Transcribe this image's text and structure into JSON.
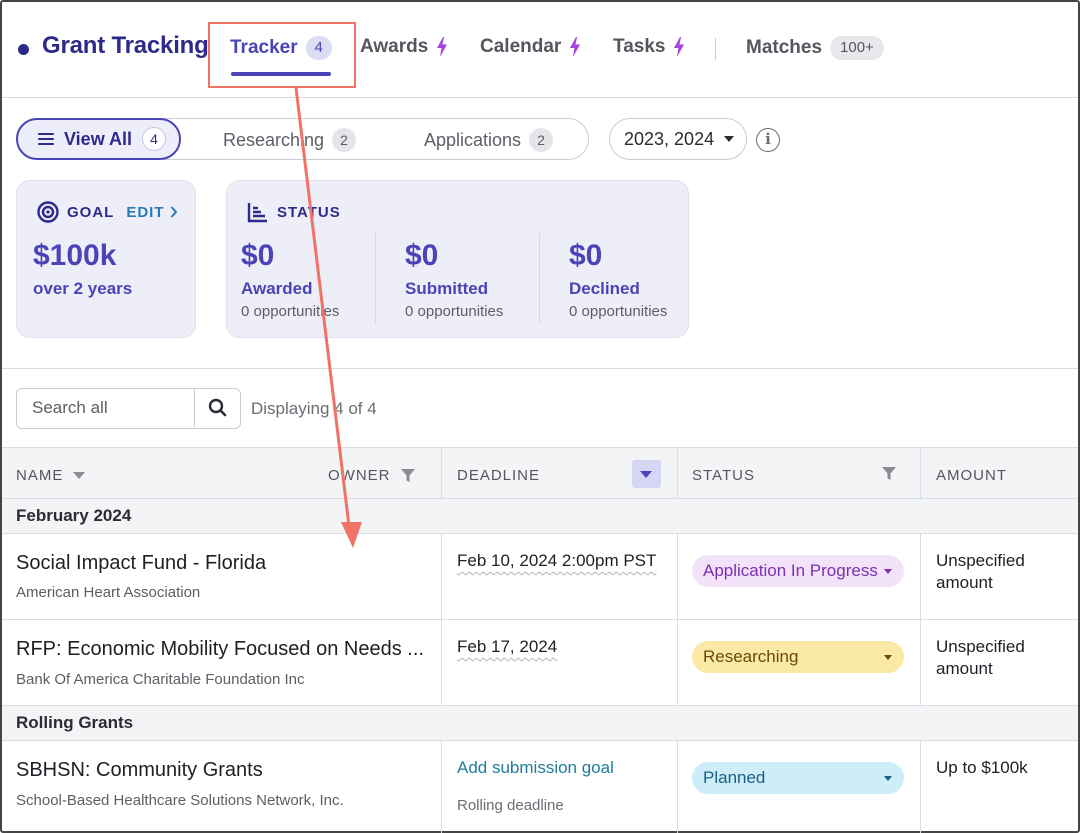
{
  "app": {
    "title": "Grant Tracking"
  },
  "nav": {
    "items": [
      {
        "label": "Tracker",
        "count": "4"
      },
      {
        "label": "Awards"
      },
      {
        "label": "Calendar"
      },
      {
        "label": "Tasks"
      },
      {
        "label": "Matches",
        "count": "100+"
      }
    ],
    "active": "Tracker",
    "accent": "#4a44b8"
  },
  "filters": {
    "view_all": {
      "label": "View All",
      "count": "4"
    },
    "researching": {
      "label": "Researching",
      "count": "2"
    },
    "applications": {
      "label": "Applications",
      "count": "2"
    },
    "year_select": "2023, 2024",
    "info_icon": "i"
  },
  "goal_card": {
    "heading": "GOAL",
    "edit_label": "EDIT",
    "amount": "$100k",
    "period": "over 2 years"
  },
  "status_card": {
    "heading": "STATUS",
    "items": [
      {
        "amount": "$0",
        "label": "Awarded",
        "note": "0 opportunities"
      },
      {
        "amount": "$0",
        "label": "Submitted",
        "note": "0 opportunities"
      },
      {
        "amount": "$0",
        "label": "Declined",
        "note": "0 opportunities"
      }
    ]
  },
  "search": {
    "placeholder": "Search all",
    "displaying": "Displaying 4 of 4"
  },
  "table": {
    "headers": {
      "name": "NAME",
      "owner": "OWNER",
      "deadline": "DEADLINE",
      "status": "STATUS",
      "amount": "AMOUNT"
    },
    "groups": [
      {
        "label": "February 2024",
        "rows": [
          {
            "name": "Social Impact Fund - Florida",
            "org": "American Heart Association",
            "deadline": "Feb 10, 2024 2:00pm PST",
            "status": "Application In Progress",
            "status_color": "#7d2fb0",
            "status_bg": "#f3e3fa",
            "amount": "Unspecified amount"
          },
          {
            "name": "RFP: Economic Mobility Focused on Needs ...",
            "org": "Bank Of America Charitable Foundation Inc",
            "deadline": "Feb 17, 2024",
            "status": "Researching",
            "status_color": "#6b4a00",
            "status_bg": "#fbe9a8",
            "amount": "Unspecified amount"
          }
        ]
      },
      {
        "label": "Rolling Grants",
        "rows": [
          {
            "name": "SBHSN: Community Grants",
            "org": "School-Based Healthcare Solutions Network, Inc.",
            "deadline_link": "Add submission goal",
            "deadline_note": "Rolling deadline",
            "status": "Planned",
            "status_color": "#1b5f86",
            "status_bg": "#cdeef8",
            "amount": "Up to $100k"
          }
        ]
      }
    ]
  },
  "annotation": {
    "color": "#ef7366"
  }
}
